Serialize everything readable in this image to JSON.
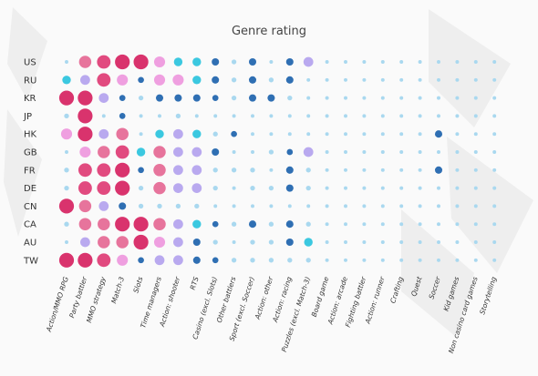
{
  "chart_data": {
    "type": "heatmap",
    "title": "Genre rating",
    "xlabel": "",
    "ylabel": "",
    "rows": [
      "US",
      "RU",
      "KR",
      "JP",
      "HK",
      "GB",
      "FR",
      "DE",
      "CN",
      "CA",
      "AU",
      "TW"
    ],
    "columns": [
      "Action/MMO RPG",
      "Party battler",
      "MMO strategy",
      "Match-3",
      "Slots",
      "Time managers",
      "Action: shooter",
      "RTS",
      "Casino (excl. Slots)",
      "Other battlers",
      "Sport (excl. Soccer)",
      "Action: other",
      "Action: racing",
      "Puzzles (excl. Match-3)",
      "Board game",
      "Action: arcade",
      "Fighting battler",
      "Action: runner",
      "Crafting",
      "Quest",
      "Soccer",
      "Kid games",
      "Non casino card games",
      "Storytelling"
    ],
    "value_scale": {
      "description": "rating level, 0 (smallest dot) to 10 (largest dot)",
      "min": 0,
      "max": 10
    },
    "colors": {
      "1": "#a9d8ef",
      "2": "#a9d8ef",
      "3": "#2f6fb3",
      "4": "#2f6fb3",
      "5": "#3bc8e0",
      "6": "#b9a9ef",
      "7": "#ef9fe0",
      "8": "#e7749c",
      "9": "#e14a7f",
      "10": "#d9336d"
    },
    "values": [
      [
        1,
        8,
        9,
        10,
        10,
        7,
        5,
        5,
        4,
        2,
        4,
        1,
        4,
        6,
        1,
        1,
        1,
        1,
        1,
        1,
        1,
        1,
        1,
        1
      ],
      [
        5,
        6,
        9,
        7,
        3,
        7,
        7,
        5,
        4,
        2,
        4,
        2,
        4,
        1,
        1,
        1,
        1,
        1,
        1,
        1,
        1,
        1,
        1,
        1
      ],
      [
        10,
        10,
        6,
        3,
        2,
        4,
        4,
        4,
        3,
        2,
        4,
        4,
        2,
        1,
        1,
        1,
        1,
        1,
        1,
        1,
        1,
        1,
        1,
        1
      ],
      [
        2,
        10,
        1,
        3,
        1,
        1,
        2,
        1,
        1,
        1,
        1,
        1,
        1,
        1,
        1,
        1,
        1,
        1,
        1,
        1,
        1,
        1,
        1,
        1
      ],
      [
        7,
        10,
        6,
        8,
        1,
        5,
        6,
        5,
        2,
        3,
        1,
        1,
        1,
        1,
        1,
        1,
        1,
        1,
        1,
        1,
        4,
        1,
        1,
        1
      ],
      [
        1,
        7,
        8,
        9,
        5,
        8,
        6,
        6,
        4,
        1,
        1,
        2,
        3,
        6,
        1,
        1,
        1,
        1,
        1,
        1,
        1,
        1,
        1,
        1
      ],
      [
        2,
        9,
        9,
        10,
        3,
        8,
        6,
        6,
        2,
        2,
        2,
        1,
        4,
        2,
        1,
        1,
        1,
        1,
        1,
        1,
        4,
        1,
        1,
        1
      ],
      [
        2,
        9,
        9,
        10,
        2,
        8,
        6,
        6,
        2,
        1,
        2,
        2,
        4,
        2,
        1,
        1,
        1,
        1,
        1,
        1,
        1,
        1,
        1,
        1
      ],
      [
        10,
        8,
        6,
        4,
        2,
        2,
        2,
        2,
        1,
        1,
        1,
        1,
        1,
        1,
        1,
        1,
        1,
        1,
        1,
        1,
        1,
        1,
        1,
        1
      ],
      [
        2,
        8,
        8,
        10,
        10,
        8,
        6,
        5,
        3,
        2,
        4,
        2,
        4,
        2,
        1,
        1,
        1,
        1,
        1,
        1,
        1,
        1,
        1,
        1
      ],
      [
        1,
        6,
        8,
        8,
        10,
        7,
        6,
        4,
        2,
        1,
        2,
        2,
        4,
        5,
        1,
        1,
        1,
        1,
        1,
        1,
        1,
        1,
        1,
        1
      ],
      [
        10,
        10,
        9,
        7,
        3,
        6,
        6,
        4,
        3,
        2,
        2,
        2,
        2,
        2,
        1,
        1,
        1,
        1,
        1,
        1,
        1,
        1,
        1,
        1
      ]
    ]
  }
}
